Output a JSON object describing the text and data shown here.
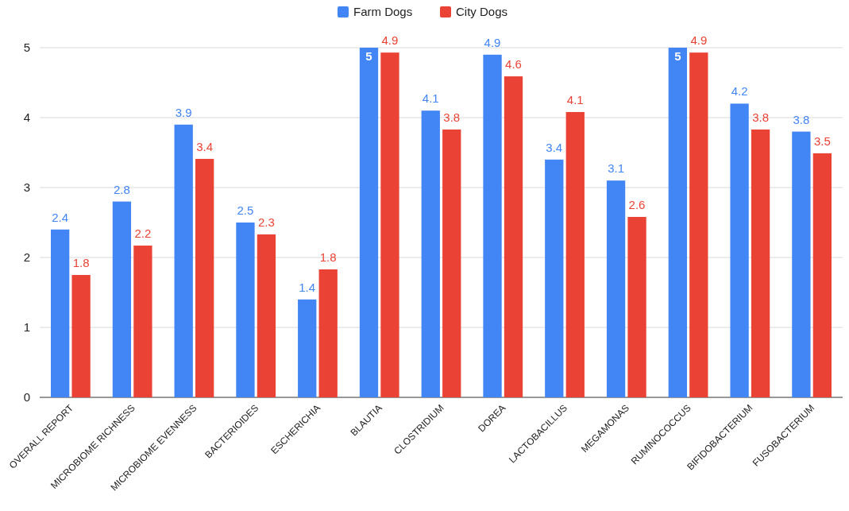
{
  "chart_data": {
    "type": "bar",
    "categories": [
      "OVERALL REPORT",
      "MICROBIOME RICHNESS",
      "MICROBIOME EVENNESS",
      "BACTERIOIDES",
      "ESCHERICHIA",
      "BLAUTIA",
      "CLOSTRIDIUM",
      "DOREA",
      "LACTOBACILLUS",
      "MEGAMONAS",
      "RUMINOCOCCUS",
      "BIFIDOBACTERIUM",
      "FUSOBACTERIUM"
    ],
    "series": [
      {
        "name": "Farm Dogs",
        "color": "#4285f4",
        "values": [
          2.4,
          2.8,
          3.9,
          2.5,
          1.4,
          5,
          4.1,
          4.9,
          3.4,
          3.1,
          5,
          4.2,
          3.8
        ],
        "value_labels": [
          "2.4",
          "2.8",
          "3.9",
          "2.5",
          "1.4",
          "5",
          "4.1",
          "4.9",
          "3.4",
          "3.1",
          "5",
          "4.2",
          "3.8"
        ]
      },
      {
        "name": "City Dogs",
        "color": "#ea4335",
        "values": [
          1.75,
          2.17,
          3.41,
          2.33,
          1.83,
          4.93,
          3.83,
          4.59,
          4.08,
          2.58,
          4.93,
          3.83,
          3.49
        ],
        "value_labels": [
          "1.8",
          "2.2",
          "3.4",
          "2.3",
          "1.8",
          "4.9",
          "3.8",
          "4.6",
          "4.1",
          "2.6",
          "4.9",
          "3.8",
          "3.5"
        ]
      }
    ],
    "ylim": [
      0,
      5
    ],
    "yticks": [
      0,
      1,
      2,
      3,
      4,
      5
    ],
    "grid": "y",
    "legend": "top"
  }
}
